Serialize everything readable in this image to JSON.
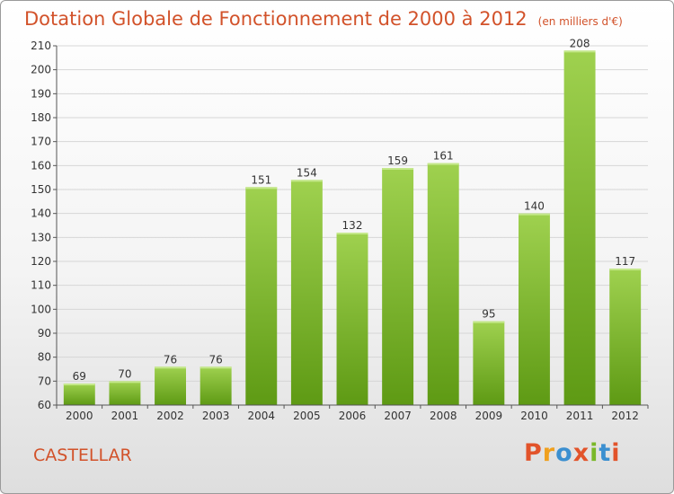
{
  "header": {
    "title": "Dotation Globale de Fonctionnement de 2000 à 2012",
    "subtitle": "(en milliers d'€)"
  },
  "footer": {
    "commune": "CASTELLAR",
    "logo": [
      "P",
      "r",
      "o",
      "x",
      "i",
      "t",
      "i"
    ],
    "logo_colors": [
      "#e2532a",
      "#f0a01e",
      "#3b8fd0",
      "#e2532a",
      "#7ab829",
      "#3b8fd0",
      "#e2532a"
    ]
  },
  "chart_data": {
    "type": "bar",
    "categories": [
      "2000",
      "2001",
      "2002",
      "2003",
      "2004",
      "2005",
      "2006",
      "2007",
      "2008",
      "2009",
      "2010",
      "2011",
      "2012"
    ],
    "values": [
      69,
      70,
      76,
      76,
      151,
      154,
      132,
      159,
      161,
      95,
      140,
      208,
      117
    ],
    "ylim": [
      60,
      210
    ],
    "yticks": [
      60,
      70,
      80,
      90,
      100,
      110,
      120,
      130,
      140,
      150,
      160,
      170,
      180,
      190,
      200,
      210
    ],
    "grid": true,
    "bar_color_top": "#9fd14f",
    "bar_color_bottom": "#5e9a14"
  }
}
